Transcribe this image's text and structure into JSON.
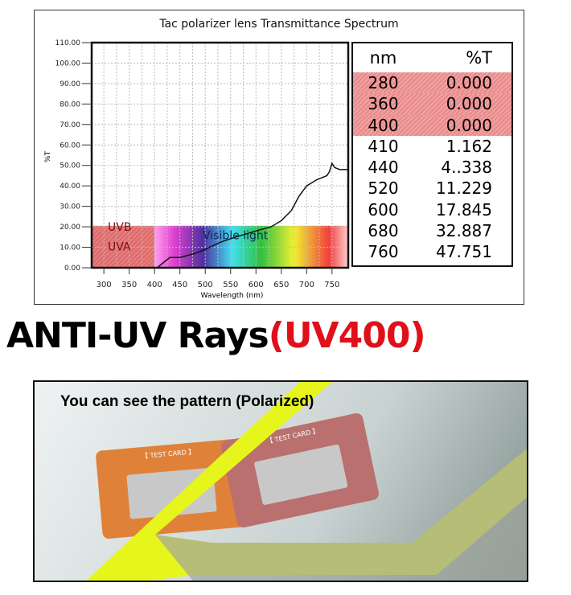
{
  "chart_data": {
    "type": "line",
    "title": "Tac polarizer lens Transmittance Spectrum",
    "xlabel": "Wavelength (nm)",
    "ylabel": "%T",
    "xlim": [
      276,
      782
    ],
    "ylim": [
      0,
      110
    ],
    "xticks": [
      300,
      350,
      400,
      450,
      500,
      550,
      600,
      650,
      700,
      750
    ],
    "yticks": [
      "0.00",
      "10.00",
      "20.00",
      "30.00",
      "40.00",
      "50.00",
      "60.00",
      "70.00",
      "80.00",
      "90.00",
      "100.00",
      "110.00"
    ],
    "grid": true,
    "series": [
      {
        "color": "#111111",
        "x": [
          405,
          420,
          430,
          450,
          480,
          500,
          530,
          560,
          600,
          630,
          650,
          670,
          685,
          700,
          720,
          740,
          745,
          750,
          755,
          765,
          782
        ],
        "y": [
          0,
          3,
          5,
          5,
          7,
          9,
          12.5,
          15,
          18,
          20,
          23,
          28,
          35,
          40,
          43,
          45,
          47,
          51,
          49,
          48,
          48
        ]
      }
    ],
    "annotations": {
      "uv_labels": [
        "UVB",
        "UVA"
      ],
      "visible": "Visible light",
      "uv_color": "#e77b7b",
      "band_top": 20.5
    },
    "table": {
      "headers": [
        "nm",
        "%T"
      ],
      "rows": [
        [
          "280",
          "0.000"
        ],
        [
          "360",
          "0.000"
        ],
        [
          "400",
          "0.000"
        ],
        [
          "410",
          "1.162"
        ],
        [
          "440",
          "4..338"
        ],
        [
          "520",
          "11.229"
        ],
        [
          "600",
          "17.845"
        ],
        [
          "680",
          "32.887"
        ],
        [
          "760",
          "47.751"
        ]
      ],
      "highlighted_rows": 3
    }
  },
  "headline": {
    "part1": "ANTI-UV Rays",
    "part2": "(UV400)"
  },
  "photo": {
    "caption": "You can see the pattern (Polarized)",
    "card_label": "【 TEST CARD 】",
    "frame_color": "#e6f51c"
  }
}
